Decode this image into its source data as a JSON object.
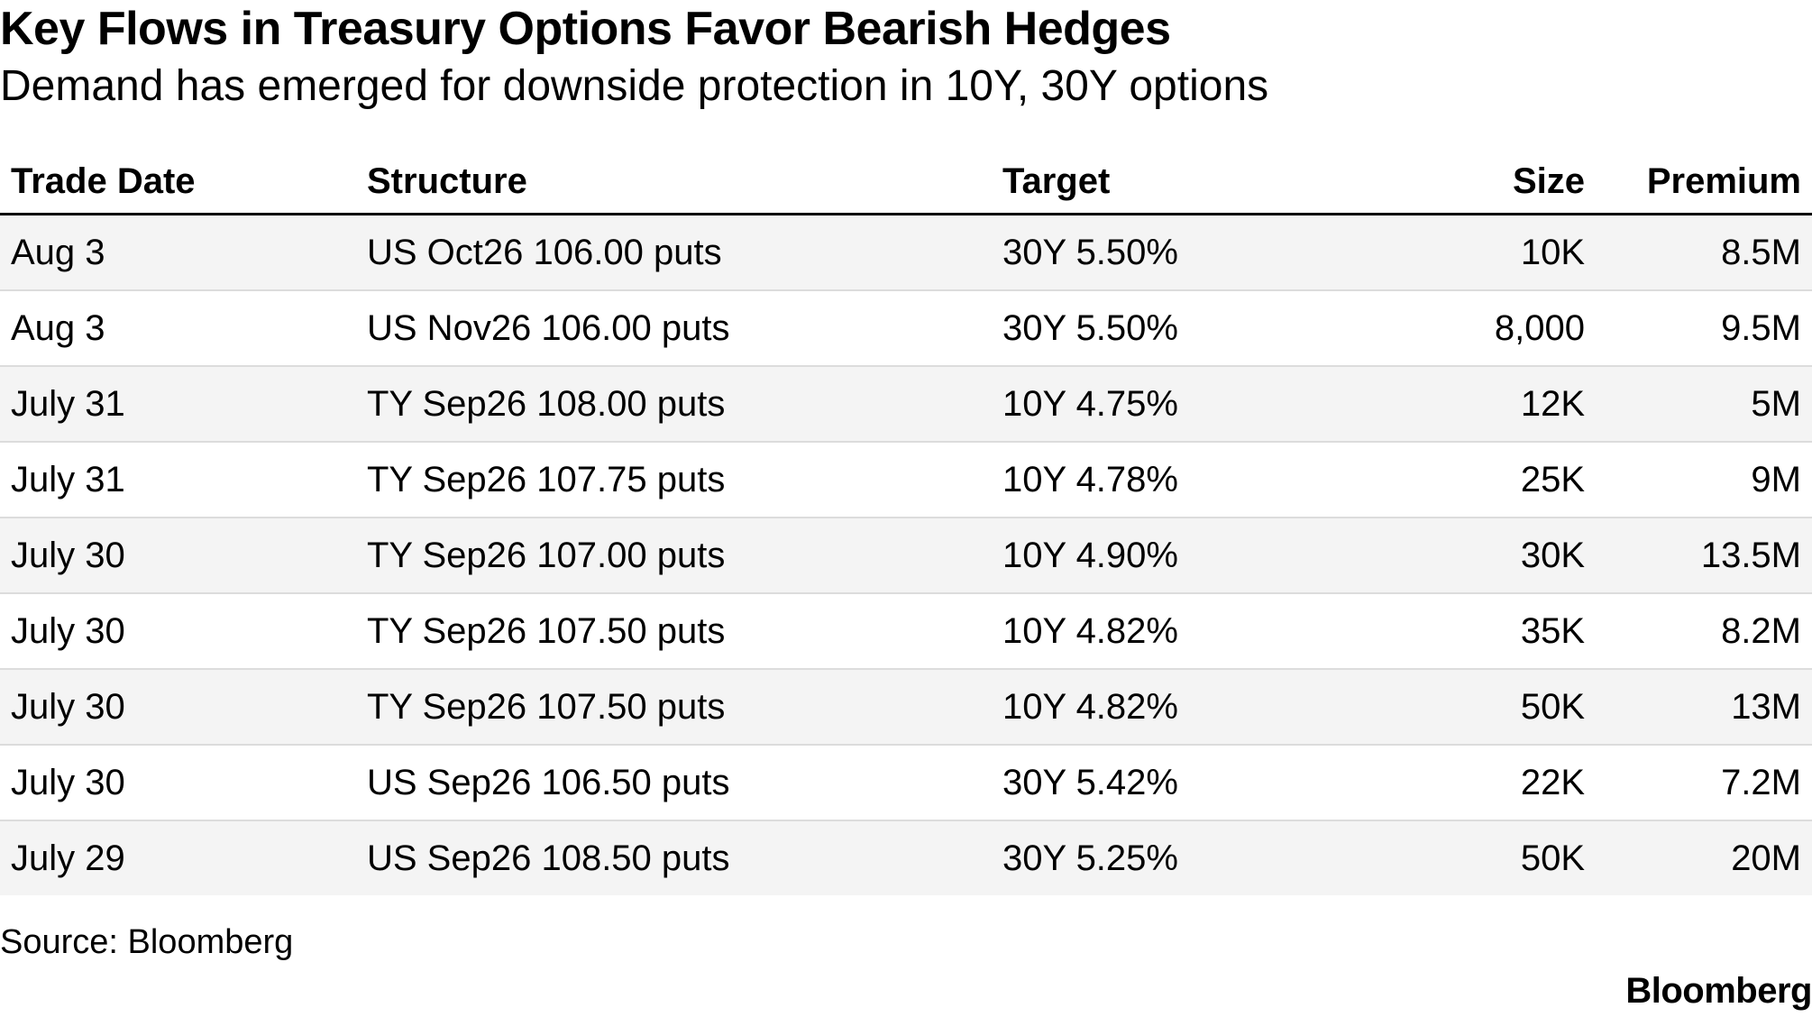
{
  "header": {
    "title": "Key Flows in Treasury Options Favor Bearish Hedges",
    "subtitle": "Demand has emerged for downside protection in 10Y, 30Y options"
  },
  "chart_data": {
    "type": "table",
    "columns": [
      "Trade Date",
      "Structure",
      "Target",
      "Size",
      "Premium"
    ],
    "rows": [
      [
        "Aug 3",
        "US Oct26 106.00 puts",
        "30Y 5.50%",
        "10K",
        "8.5M"
      ],
      [
        "Aug 3",
        "US Nov26 106.00 puts",
        "30Y 5.50%",
        "8,000",
        "9.5M"
      ],
      [
        "July 31",
        "TY Sep26 108.00 puts",
        "10Y 4.75%",
        "12K",
        "5M"
      ],
      [
        "July 31",
        "TY Sep26 107.75 puts",
        "10Y 4.78%",
        "25K",
        "9M"
      ],
      [
        "July 30",
        "TY Sep26 107.00 puts",
        "10Y 4.90%",
        "30K",
        "13.5M"
      ],
      [
        "July 30",
        "TY Sep26 107.50 puts",
        "10Y 4.82%",
        "35K",
        "8.2M"
      ],
      [
        "July 30",
        "TY Sep26 107.50 puts",
        "10Y 4.82%",
        "50K",
        "13M"
      ],
      [
        "July 30",
        "US Sep26 106.50 puts",
        "30Y 5.42%",
        "22K",
        "7.2M"
      ],
      [
        "July 29",
        "US Sep26 108.50 puts",
        "30Y 5.25%",
        "50K",
        "20M"
      ]
    ]
  },
  "footer": {
    "source": "Source: Bloomberg",
    "brand": "Bloomberg"
  },
  "colors": {
    "text": "#000000",
    "stripe": "#f4f4f4",
    "row_divider": "#dcdcdc"
  }
}
